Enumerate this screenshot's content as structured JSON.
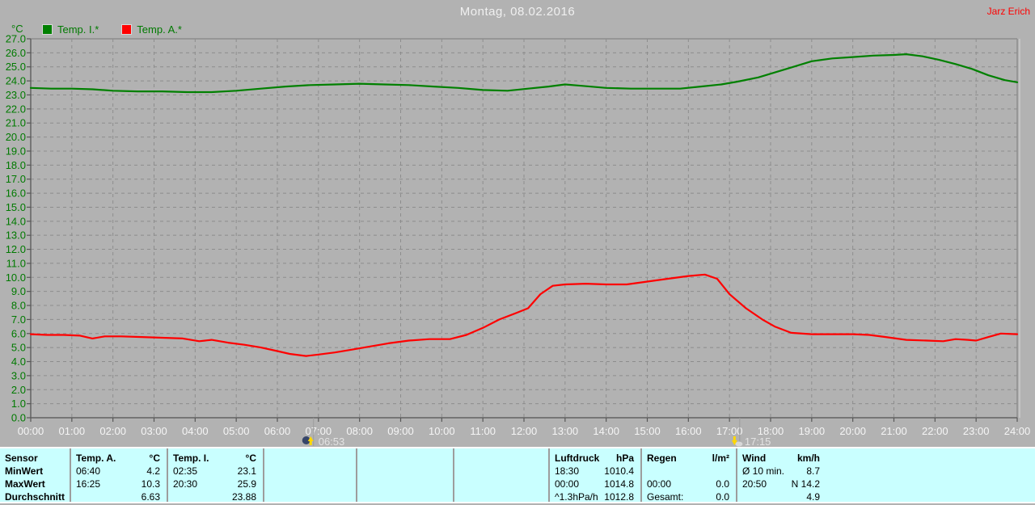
{
  "header": {
    "title": "Montag, 08.02.2016",
    "user": "Jarz Erich"
  },
  "legend": {
    "unit": "°C",
    "items": [
      {
        "label": "Temp. I.*",
        "color": "#008000"
      },
      {
        "label": "Temp. A.*",
        "color": "#ff0000"
      }
    ]
  },
  "chart_data": {
    "type": "line",
    "title": "Montag, 08.02.2016",
    "xlabel": "",
    "ylabel": "°C",
    "ylim": [
      0,
      27
    ],
    "y_tick_step": 1.0,
    "x_range_hours": [
      0,
      24
    ],
    "grid": true,
    "legend_position": "top-left",
    "y_tick_labels": [
      "0.0",
      "1.0",
      "2.0",
      "3.0",
      "4.0",
      "5.0",
      "6.0",
      "7.0",
      "8.0",
      "9.0",
      "10.0",
      "11.0",
      "12.0",
      "13.0",
      "14.0",
      "15.0",
      "16.0",
      "17.0",
      "18.0",
      "19.0",
      "20.0",
      "21.0",
      "22.0",
      "23.0",
      "24.0",
      "25.0",
      "26.0",
      "27.0"
    ],
    "x_tick_labels": [
      "00:00",
      "01:00",
      "02:00",
      "03:00",
      "04:00",
      "05:00",
      "06:00",
      "07:00",
      "08:00",
      "09:00",
      "10:00",
      "11:00",
      "12:00",
      "13:00",
      "14:00",
      "15:00",
      "16:00",
      "17:00",
      "18:00",
      "19:00",
      "20:00",
      "21:00",
      "22:00",
      "23:00",
      "24:00"
    ],
    "series": [
      {
        "name": "Temp. I.*",
        "color": "#008000",
        "points": [
          [
            0,
            23.5
          ],
          [
            0.5,
            23.45
          ],
          [
            1,
            23.45
          ],
          [
            1.5,
            23.4
          ],
          [
            2,
            23.3
          ],
          [
            2.6,
            23.25
          ],
          [
            3.2,
            23.25
          ],
          [
            3.8,
            23.2
          ],
          [
            4.4,
            23.2
          ],
          [
            5,
            23.3
          ],
          [
            5.6,
            23.45
          ],
          [
            6.2,
            23.6
          ],
          [
            6.8,
            23.7
          ],
          [
            7.4,
            23.75
          ],
          [
            8,
            23.8
          ],
          [
            8.6,
            23.75
          ],
          [
            9.2,
            23.7
          ],
          [
            9.8,
            23.6
          ],
          [
            10.4,
            23.5
          ],
          [
            11,
            23.35
          ],
          [
            11.6,
            23.3
          ],
          [
            12.1,
            23.45
          ],
          [
            12.6,
            23.6
          ],
          [
            13,
            23.75
          ],
          [
            13.4,
            23.65
          ],
          [
            14,
            23.5
          ],
          [
            14.6,
            23.45
          ],
          [
            15.2,
            23.45
          ],
          [
            15.8,
            23.45
          ],
          [
            16.3,
            23.6
          ],
          [
            16.8,
            23.75
          ],
          [
            17.2,
            23.95
          ],
          [
            17.7,
            24.25
          ],
          [
            18.1,
            24.6
          ],
          [
            18.5,
            24.95
          ],
          [
            19,
            25.4
          ],
          [
            19.5,
            25.6
          ],
          [
            20,
            25.7
          ],
          [
            20.5,
            25.8
          ],
          [
            21,
            25.85
          ],
          [
            21.3,
            25.9
          ],
          [
            21.7,
            25.75
          ],
          [
            22.1,
            25.5
          ],
          [
            22.5,
            25.2
          ],
          [
            22.9,
            24.85
          ],
          [
            23.3,
            24.4
          ],
          [
            23.7,
            24.05
          ],
          [
            24,
            23.9
          ]
        ]
      },
      {
        "name": "Temp. A.*",
        "color": "#ff0000",
        "points": [
          [
            0,
            5.95
          ],
          [
            0.4,
            5.9
          ],
          [
            0.8,
            5.9
          ],
          [
            1.2,
            5.85
          ],
          [
            1.5,
            5.65
          ],
          [
            1.8,
            5.8
          ],
          [
            2.2,
            5.8
          ],
          [
            2.7,
            5.75
          ],
          [
            3.2,
            5.7
          ],
          [
            3.7,
            5.65
          ],
          [
            4.1,
            5.45
          ],
          [
            4.4,
            5.55
          ],
          [
            4.8,
            5.35
          ],
          [
            5.2,
            5.2
          ],
          [
            5.6,
            5.0
          ],
          [
            6,
            4.75
          ],
          [
            6.3,
            4.55
          ],
          [
            6.7,
            4.4
          ],
          [
            7,
            4.5
          ],
          [
            7.4,
            4.65
          ],
          [
            7.8,
            4.85
          ],
          [
            8.2,
            5.05
          ],
          [
            8.7,
            5.3
          ],
          [
            9.2,
            5.5
          ],
          [
            9.7,
            5.6
          ],
          [
            10.2,
            5.6
          ],
          [
            10.6,
            5.9
          ],
          [
            11,
            6.4
          ],
          [
            11.4,
            7.0
          ],
          [
            11.8,
            7.45
          ],
          [
            12.1,
            7.8
          ],
          [
            12.4,
            8.8
          ],
          [
            12.7,
            9.4
          ],
          [
            13,
            9.5
          ],
          [
            13.5,
            9.55
          ],
          [
            14,
            9.5
          ],
          [
            14.5,
            9.5
          ],
          [
            15,
            9.7
          ],
          [
            15.5,
            9.9
          ],
          [
            16,
            10.1
          ],
          [
            16.4,
            10.2
          ],
          [
            16.7,
            9.9
          ],
          [
            17,
            8.8
          ],
          [
            17.4,
            7.8
          ],
          [
            17.8,
            7.0
          ],
          [
            18.1,
            6.5
          ],
          [
            18.5,
            6.05
          ],
          [
            19,
            5.95
          ],
          [
            19.5,
            5.95
          ],
          [
            20,
            5.95
          ],
          [
            20.4,
            5.9
          ],
          [
            20.8,
            5.75
          ],
          [
            21.3,
            5.55
          ],
          [
            21.8,
            5.5
          ],
          [
            22.2,
            5.45
          ],
          [
            22.5,
            5.6
          ],
          [
            22.8,
            5.55
          ],
          [
            23,
            5.5
          ],
          [
            23.3,
            5.75
          ],
          [
            23.6,
            6.0
          ],
          [
            24,
            5.95
          ]
        ]
      }
    ],
    "markers": [
      {
        "type": "sunrise",
        "time": "06:53",
        "hour": 6.88
      },
      {
        "type": "sunset",
        "time": "17:15",
        "hour": 17.25
      }
    ]
  },
  "summary_table": {
    "row_labels": [
      "Sensor",
      "MinWert",
      "MaxWert",
      "Durchschnitt"
    ],
    "columns": [
      {
        "id": "temp-a",
        "title": "Temp. A.",
        "unit": "°C",
        "rows": [
          [
            "06:40",
            "4.2"
          ],
          [
            "16:25",
            "10.3"
          ],
          [
            "",
            "6.63"
          ]
        ]
      },
      {
        "id": "temp-i",
        "title": "Temp. I.",
        "unit": "°C",
        "rows": [
          [
            "02:35",
            "23.1"
          ],
          [
            "20:30",
            "25.9"
          ],
          [
            "",
            "23.88"
          ]
        ]
      },
      {
        "id": "luftdruck",
        "title": "Luftdruck",
        "unit": "hPa",
        "rows": [
          [
            "18:30",
            "1010.4"
          ],
          [
            "00:00",
            "1014.8"
          ],
          [
            "^1.3hPa/h",
            "1012.8"
          ]
        ]
      },
      {
        "id": "regen",
        "title": "Regen",
        "unit": "l/m²",
        "rows": [
          [
            "",
            ""
          ],
          [
            "00:00",
            "0.0"
          ],
          [
            "Gesamt:",
            "0.0"
          ]
        ]
      },
      {
        "id": "wind",
        "title": "Wind",
        "unit": "km/h",
        "rows": [
          [
            "Ø 10 min.",
            "8.7"
          ],
          [
            "20:50",
            "N 14.2"
          ],
          [
            "",
            "4.9"
          ]
        ]
      }
    ]
  }
}
